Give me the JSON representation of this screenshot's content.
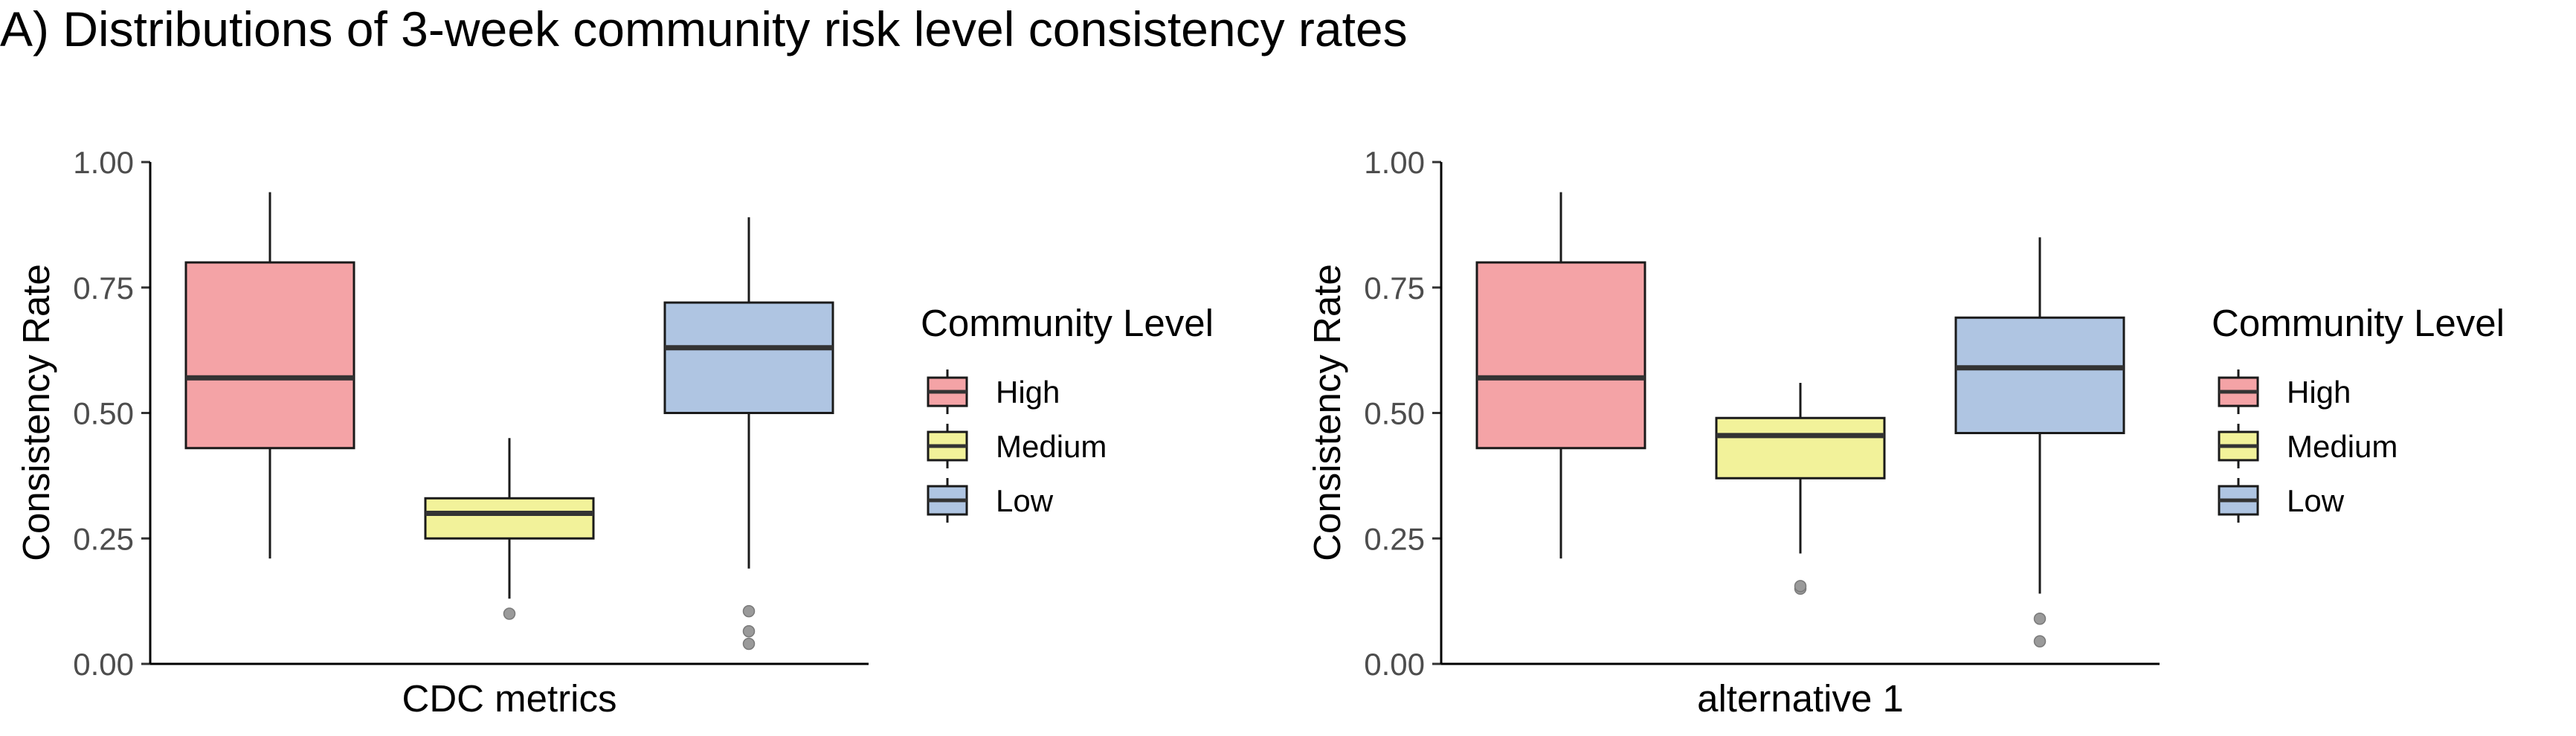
{
  "figure_title": "A) Distributions of 3-week community risk level consistency rates",
  "legend": {
    "title": "Community Level",
    "items": [
      {
        "label": "High",
        "color": "#F4A3A6"
      },
      {
        "label": "Medium",
        "color": "#F2F29A"
      },
      {
        "label": "Low",
        "color": "#AFC5E2"
      }
    ]
  },
  "chart_data": [
    {
      "type": "box",
      "xlabel": "CDC metrics",
      "ylabel": "Consistency Rate",
      "ylim": [
        0,
        1
      ],
      "yticks": [
        "0.00",
        "0.25",
        "0.50",
        "0.75",
        "1.00"
      ],
      "legend_position": "right",
      "grid": false,
      "series": [
        {
          "name": "High",
          "color": "#F4A3A6",
          "min": 0.21,
          "q1": 0.43,
          "median": 0.57,
          "q3": 0.8,
          "max": 0.94,
          "outliers": []
        },
        {
          "name": "Medium",
          "color": "#F2F29A",
          "min": 0.13,
          "q1": 0.25,
          "median": 0.3,
          "q3": 0.33,
          "max": 0.45,
          "outliers": [
            0.1
          ]
        },
        {
          "name": "Low",
          "color": "#AFC5E2",
          "min": 0.19,
          "q1": 0.5,
          "median": 0.63,
          "q3": 0.72,
          "max": 0.89,
          "outliers": [
            0.04,
            0.065,
            0.105
          ]
        }
      ]
    },
    {
      "type": "box",
      "xlabel": "alternative 1",
      "ylabel": "Consistency Rate",
      "ylim": [
        0,
        1
      ],
      "yticks": [
        "0.00",
        "0.25",
        "0.50",
        "0.75",
        "1.00"
      ],
      "legend_position": "right",
      "grid": false,
      "series": [
        {
          "name": "High",
          "color": "#F4A3A6",
          "min": 0.21,
          "q1": 0.43,
          "median": 0.57,
          "q3": 0.8,
          "max": 0.94,
          "outliers": []
        },
        {
          "name": "Medium",
          "color": "#F2F29A",
          "min": 0.22,
          "q1": 0.37,
          "median": 0.455,
          "q3": 0.49,
          "max": 0.56,
          "outliers": [
            0.15,
            0.155
          ]
        },
        {
          "name": "Low",
          "color": "#AFC5E2",
          "min": 0.14,
          "q1": 0.46,
          "median": 0.59,
          "q3": 0.69,
          "max": 0.85,
          "outliers": [
            0.045,
            0.09
          ]
        }
      ]
    }
  ]
}
